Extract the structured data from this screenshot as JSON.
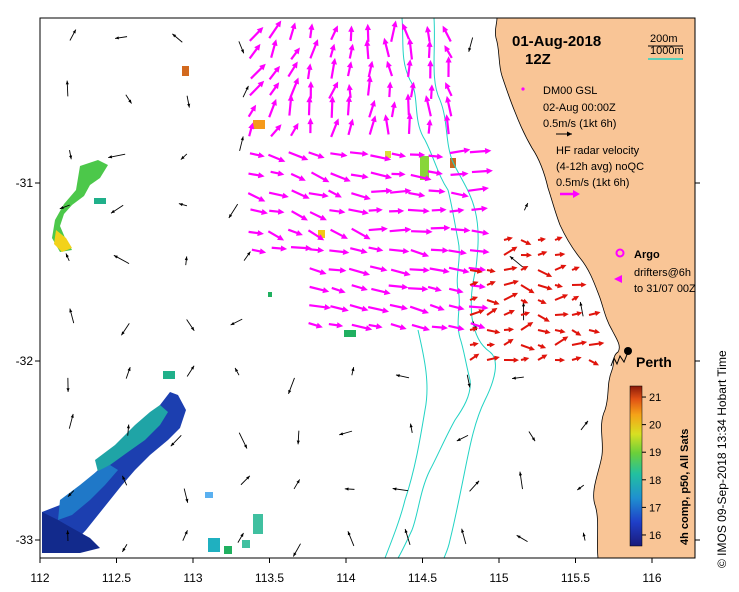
{
  "title": {
    "date": "01-Aug-2018",
    "hour": "12Z"
  },
  "contour_legend": {
    "shallow": "200m",
    "deep": "1000m",
    "shallow_color": "#000000",
    "deep_color": "#22d3c4"
  },
  "model_legend": {
    "name": "DM00 GSL",
    "time": "02-Aug 00:00Z",
    "scale": "0.5m/s (1kt 6h)"
  },
  "hf_legend": {
    "line1": "HF radar velocity",
    "line2": "(4-12h avg) noQC",
    "scale": "0.5m/s (1kt 6h)"
  },
  "argo_legend": {
    "label": "Argo"
  },
  "drifter_legend": {
    "line1": "drifters@6h",
    "line2": "to 31/07 00Z"
  },
  "city": {
    "name": "Perth"
  },
  "x_ticks": [
    "112",
    "112.5",
    "113",
    "113.5",
    "114",
    "114.5",
    "115",
    "115.5",
    "116"
  ],
  "y_ticks": [
    "-31",
    "-32",
    "-33"
  ],
  "colorbar": {
    "label": "4h comp, p50, All Sats",
    "ticks": [
      "21",
      "20",
      "19",
      "18",
      "17",
      "16"
    ],
    "min": 15.6,
    "max": 21.4
  },
  "credit": "© IMOS 09-Sep-2018 13:34 Hobart Time",
  "colors": {
    "land": "#f9c596",
    "hf_vector": "#ff00ff",
    "current_vector": "#e0140c",
    "model_vector": "#000000"
  }
}
